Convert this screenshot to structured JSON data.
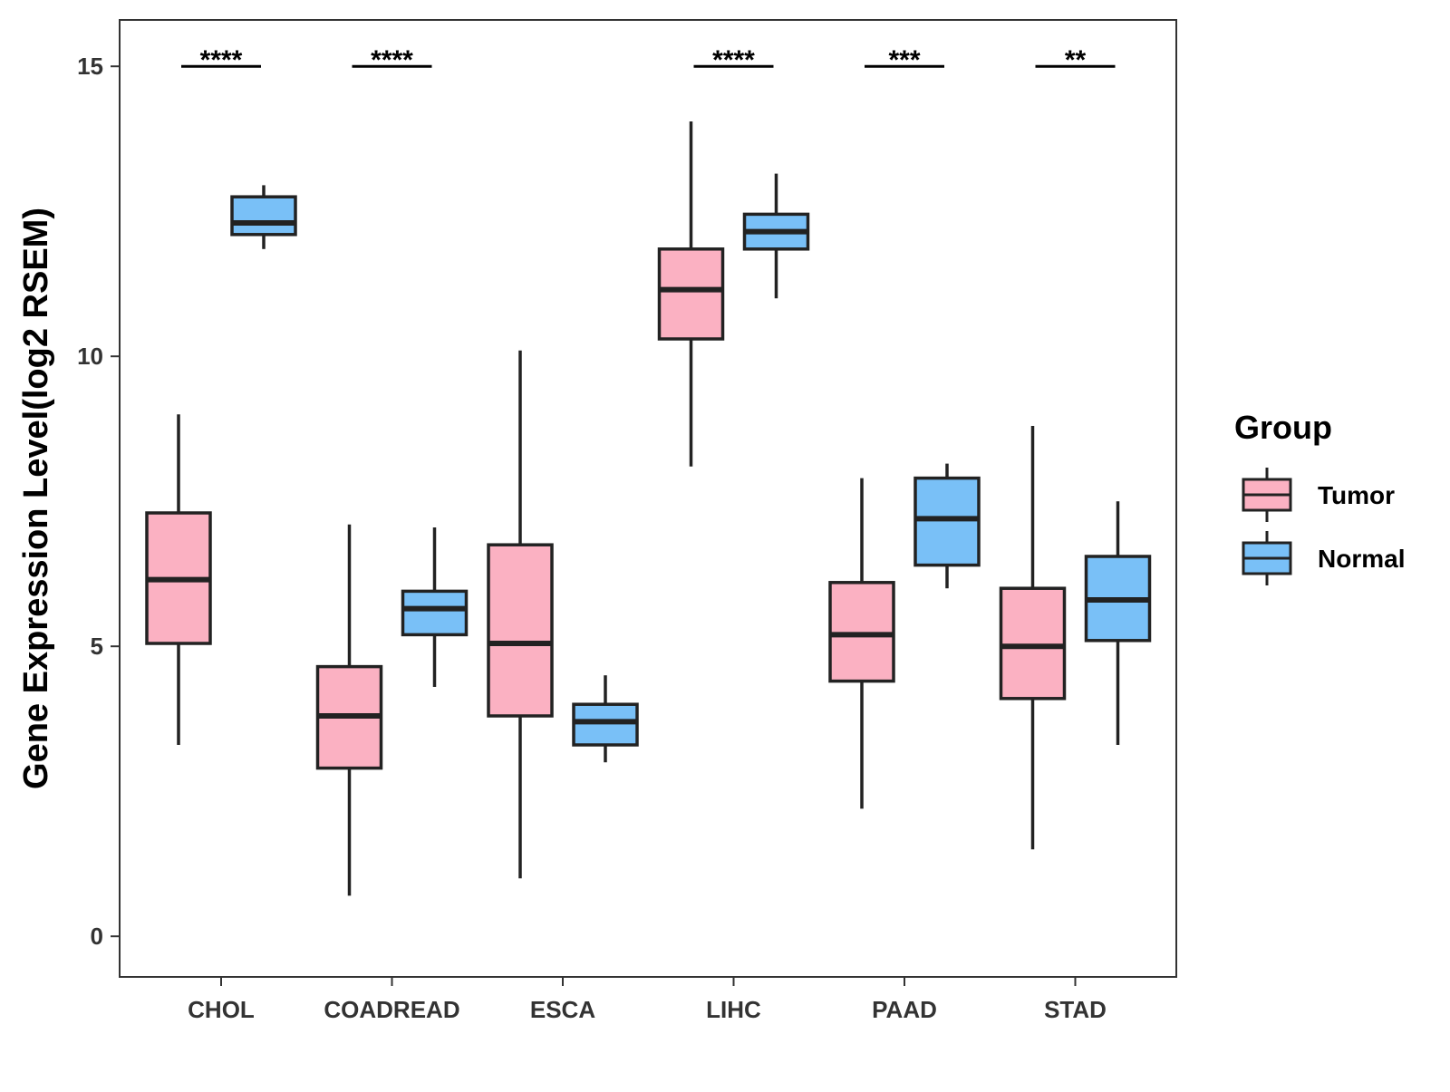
{
  "chart_data": {
    "type": "boxplot",
    "title": "",
    "xlabel": "",
    "ylabel": "Gene Expression Level(log2 RSEM)",
    "ylim": [
      -0.7,
      15.8
    ],
    "yticks": [
      0,
      5,
      10,
      15
    ],
    "grid": false,
    "categories": [
      "CHOL",
      "COADREAD",
      "ESCA",
      "LIHC",
      "PAAD",
      "STAD"
    ],
    "legend": {
      "title": "Group",
      "position": "right",
      "items": [
        {
          "label": "Tumor",
          "color": "#FBB1C2"
        },
        {
          "label": "Normal",
          "color": "#79C0F7"
        }
      ]
    },
    "series": [
      {
        "name": "Tumor",
        "color": "#FBB1C2",
        "boxes": [
          {
            "category": "CHOL",
            "min": 3.3,
            "q1": 5.05,
            "median": 6.15,
            "q3": 7.3,
            "max": 9.0
          },
          {
            "category": "COADREAD",
            "min": 0.7,
            "q1": 2.9,
            "median": 3.8,
            "q3": 4.65,
            "max": 7.1
          },
          {
            "category": "ESCA",
            "min": 1.0,
            "q1": 3.8,
            "median": 5.05,
            "q3": 6.75,
            "max": 10.1
          },
          {
            "category": "LIHC",
            "min": 8.1,
            "q1": 10.3,
            "median": 11.15,
            "q3": 11.85,
            "max": 14.05
          },
          {
            "category": "PAAD",
            "min": 2.2,
            "q1": 4.4,
            "median": 5.2,
            "q3": 6.1,
            "max": 7.9
          },
          {
            "category": "STAD",
            "min": 1.5,
            "q1": 4.1,
            "median": 5.0,
            "q3": 6.0,
            "max": 8.8
          }
        ]
      },
      {
        "name": "Normal",
        "color": "#79C0F7",
        "boxes": [
          {
            "category": "CHOL",
            "min": 11.85,
            "q1": 12.1,
            "median": 12.3,
            "q3": 12.75,
            "max": 12.95
          },
          {
            "category": "COADREAD",
            "min": 4.3,
            "q1": 5.2,
            "median": 5.65,
            "q3": 5.95,
            "max": 7.05
          },
          {
            "category": "ESCA",
            "min": 3.0,
            "q1": 3.3,
            "median": 3.7,
            "q3": 4.0,
            "max": 4.5
          },
          {
            "category": "LIHC",
            "min": 11.0,
            "q1": 11.85,
            "median": 12.15,
            "q3": 12.45,
            "max": 13.15
          },
          {
            "category": "PAAD",
            "min": 6.0,
            "q1": 6.4,
            "median": 7.2,
            "q3": 7.9,
            "max": 8.15
          },
          {
            "category": "STAD",
            "min": 3.3,
            "q1": 5.1,
            "median": 5.8,
            "q3": 6.55,
            "max": 7.5
          }
        ]
      }
    ],
    "significance": [
      {
        "category": "CHOL",
        "label": "****",
        "y": 15.0
      },
      {
        "category": "COADREAD",
        "label": "****",
        "y": 15.0
      },
      {
        "category": "LIHC",
        "label": "****",
        "y": 15.0
      },
      {
        "category": "PAAD",
        "label": "***",
        "y": 15.0
      },
      {
        "category": "STAD",
        "label": "**",
        "y": 15.0
      }
    ]
  }
}
